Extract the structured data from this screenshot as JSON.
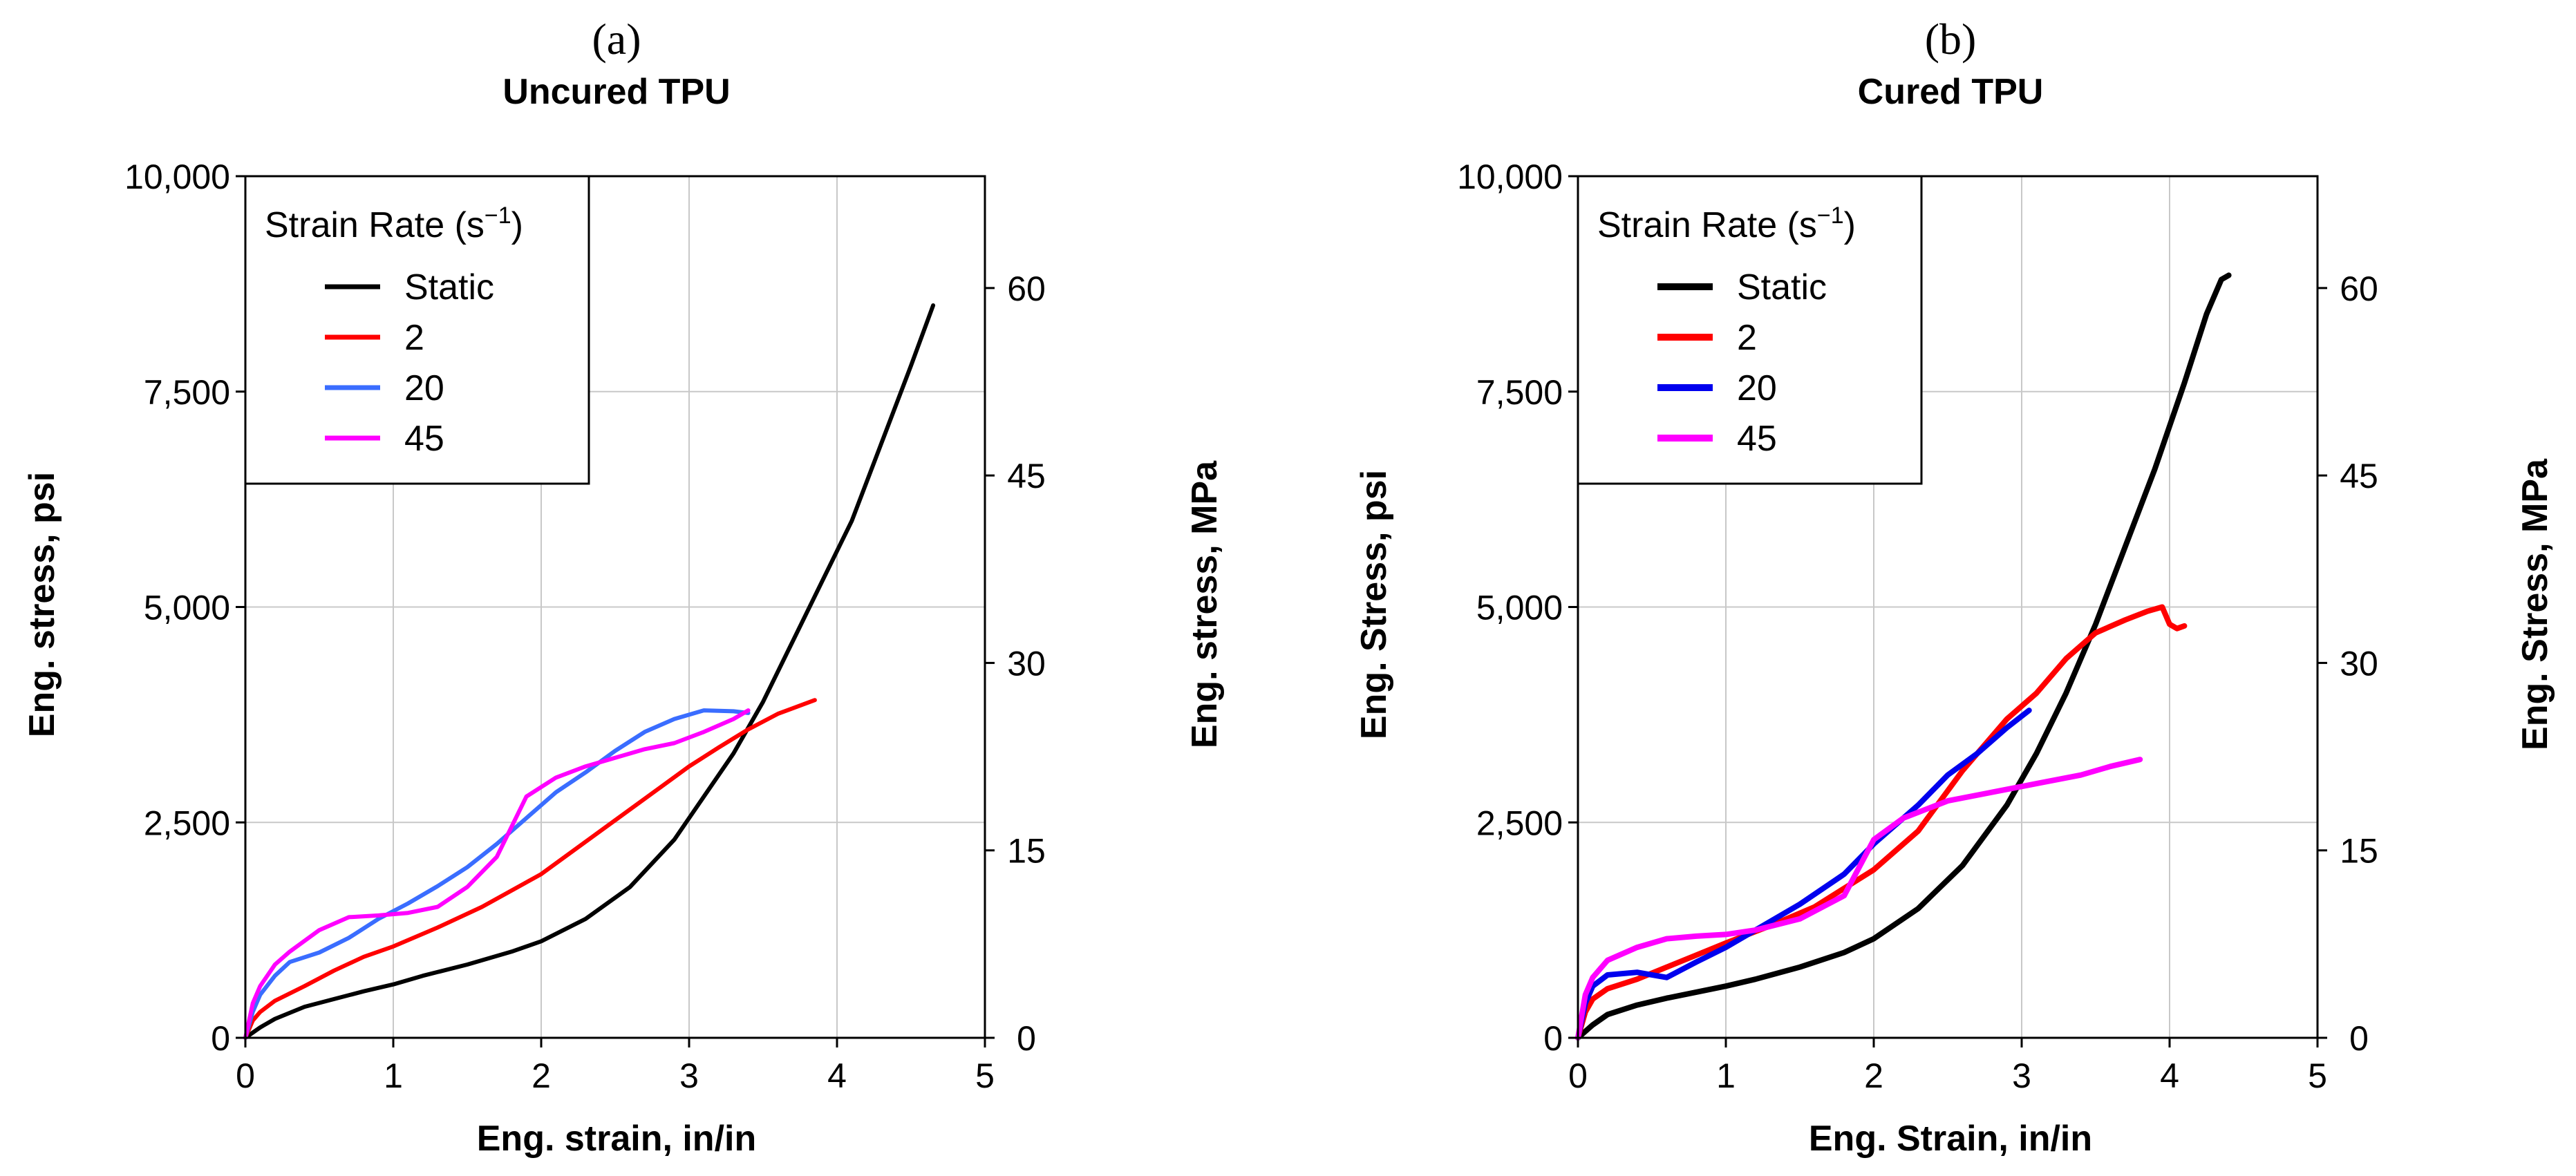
{
  "legend": {
    "title": "Strain Rate (s",
    "title_exp": "−1",
    "title_close": ")"
  },
  "colors": {
    "static": "#000000",
    "red": "#ff0000",
    "blue_a": "#3a6dff",
    "blue_b": "#0000ee",
    "magenta": "#ff00ff",
    "grid": "#c8c8c8"
  },
  "panels": [
    {
      "label": "(a)",
      "title": "Uncured TPU",
      "xlabel": "Eng. strain, in/in",
      "ylabel_left": "Eng. stress, psi",
      "ylabel_right": "Eng. stress, MPa"
    },
    {
      "label": "(b)",
      "title": "Cured TPU",
      "xlabel": "Eng. Strain, in/in",
      "ylabel_left": "Eng. Stress, psi",
      "ylabel_right": "Eng. Stress, MPa"
    }
  ],
  "chart_data": [
    {
      "type": "line",
      "title": "Uncured TPU",
      "xlabel": "Eng. strain, in/in",
      "ylabel": "Eng. stress, psi",
      "y2label": "Eng. stress, MPa",
      "xlim": [
        0,
        5
      ],
      "ylim": [
        0,
        10000
      ],
      "y2lim": [
        0,
        68.95
      ],
      "xticks": [
        0,
        1,
        2,
        3,
        4,
        5
      ],
      "xtick_labels": [
        "0",
        "1",
        "2",
        "3",
        "4",
        "5"
      ],
      "yticks": [
        0,
        2500,
        5000,
        7500,
        10000
      ],
      "ytick_labels": [
        "0",
        "2,500",
        "5,000",
        "7,500",
        "10,000"
      ],
      "y2ticks": [
        0,
        15,
        30,
        45,
        60
      ],
      "y2tick_labels": [
        "0",
        "15",
        "30",
        "45",
        "60"
      ],
      "grid": true,
      "legend_position": "top-left",
      "series": [
        {
          "name": "Static",
          "color": "#000000",
          "x": [
            0,
            0.1,
            0.2,
            0.4,
            0.6,
            0.8,
            1.0,
            1.2,
            1.5,
            1.8,
            2.0,
            2.3,
            2.6,
            2.9,
            3.1,
            3.3,
            3.5,
            3.7,
            3.9,
            4.1,
            4.3,
            4.5,
            4.65
          ],
          "y": [
            0,
            120,
            220,
            360,
            450,
            540,
            620,
            720,
            850,
            1000,
            1120,
            1380,
            1750,
            2300,
            2800,
            3300,
            3900,
            4600,
            5300,
            6000,
            6900,
            7800,
            8500
          ]
        },
        {
          "name": "2",
          "color": "#ff0000",
          "x": [
            0,
            0.05,
            0.1,
            0.2,
            0.4,
            0.6,
            0.8,
            1.0,
            1.3,
            1.6,
            2.0,
            2.4,
            2.8,
            3.0,
            3.2,
            3.4,
            3.6,
            3.85
          ],
          "y": [
            0,
            200,
            300,
            430,
            600,
            780,
            940,
            1060,
            1280,
            1520,
            1900,
            2400,
            2900,
            3150,
            3370,
            3580,
            3760,
            3920
          ]
        },
        {
          "name": "20",
          "color": "#3a6dff",
          "x": [
            0,
            0.05,
            0.1,
            0.2,
            0.3,
            0.5,
            0.7,
            0.9,
            1.1,
            1.3,
            1.5,
            1.7,
            1.9,
            2.1,
            2.3,
            2.5,
            2.7,
            2.9,
            3.1,
            3.3,
            3.4
          ],
          "y": [
            0,
            300,
            500,
            720,
            880,
            990,
            1160,
            1380,
            1560,
            1760,
            1980,
            2250,
            2550,
            2850,
            3080,
            3330,
            3550,
            3700,
            3800,
            3790,
            3770
          ]
        },
        {
          "name": "45",
          "color": "#ff00ff",
          "x": [
            0,
            0.05,
            0.1,
            0.2,
            0.3,
            0.5,
            0.7,
            0.9,
            1.1,
            1.3,
            1.5,
            1.7,
            1.9,
            2.1,
            2.3,
            2.5,
            2.7,
            2.9,
            3.1,
            3.3,
            3.4
          ],
          "y": [
            0,
            400,
            600,
            850,
            1000,
            1250,
            1400,
            1420,
            1450,
            1520,
            1750,
            2100,
            2800,
            3020,
            3150,
            3250,
            3350,
            3420,
            3550,
            3700,
            3800
          ]
        }
      ]
    },
    {
      "type": "line",
      "title": "Cured TPU",
      "xlabel": "Eng. Strain, in/in",
      "ylabel": "Eng. Stress, psi",
      "y2label": "Eng. Stress, MPa",
      "xlim": [
        0,
        5
      ],
      "ylim": [
        0,
        10000
      ],
      "y2lim": [
        0,
        68.95
      ],
      "xticks": [
        0,
        1,
        2,
        3,
        4,
        5
      ],
      "xtick_labels": [
        "0",
        "1",
        "2",
        "3",
        "4",
        "5"
      ],
      "yticks": [
        0,
        2500,
        5000,
        7500,
        10000
      ],
      "ytick_labels": [
        "0",
        "2,500",
        "5,000",
        "7,500",
        "10,000"
      ],
      "y2ticks": [
        0,
        15,
        30,
        45,
        60
      ],
      "y2tick_labels": [
        "0",
        "15",
        "30",
        "45",
        "60"
      ],
      "grid": true,
      "legend_position": "top-left",
      "series": [
        {
          "name": "Static",
          "color": "#000000",
          "x": [
            0,
            0.1,
            0.2,
            0.4,
            0.6,
            0.8,
            1.0,
            1.2,
            1.5,
            1.8,
            2.0,
            2.3,
            2.6,
            2.9,
            3.1,
            3.3,
            3.5,
            3.7,
            3.9,
            4.1,
            4.25,
            4.35,
            4.4
          ],
          "y": [
            0,
            150,
            270,
            380,
            460,
            530,
            600,
            680,
            820,
            990,
            1150,
            1500,
            2000,
            2700,
            3300,
            4000,
            4800,
            5700,
            6600,
            7600,
            8400,
            8800,
            8850
          ]
        },
        {
          "name": "2",
          "color": "#ff0000",
          "x": [
            0,
            0.05,
            0.1,
            0.2,
            0.4,
            0.6,
            0.8,
            1.0,
            1.3,
            1.6,
            2.0,
            2.3,
            2.6,
            2.9,
            3.1,
            3.3,
            3.5,
            3.7,
            3.85,
            3.95,
            4.0,
            4.05,
            4.1
          ],
          "y": [
            0,
            300,
            450,
            570,
            680,
            820,
            960,
            1100,
            1300,
            1520,
            1950,
            2400,
            3100,
            3700,
            4000,
            4400,
            4700,
            4850,
            4950,
            5000,
            4800,
            4750,
            4780
          ]
        },
        {
          "name": "20",
          "color": "#0000ee",
          "x": [
            0,
            0.05,
            0.1,
            0.2,
            0.4,
            0.6,
            0.8,
            1.0,
            1.2,
            1.5,
            1.8,
            2.0,
            2.3,
            2.5,
            2.7,
            2.9,
            3.05
          ],
          "y": [
            0,
            400,
            600,
            730,
            760,
            700,
            880,
            1050,
            1250,
            1550,
            1900,
            2250,
            2700,
            3050,
            3300,
            3600,
            3800
          ]
        },
        {
          "name": "45",
          "color": "#ff00ff",
          "x": [
            0,
            0.05,
            0.1,
            0.2,
            0.4,
            0.6,
            0.8,
            1.0,
            1.2,
            1.5,
            1.8,
            2.0,
            2.2,
            2.5,
            2.8,
            3.1,
            3.4,
            3.6,
            3.8
          ],
          "y": [
            0,
            500,
            700,
            900,
            1050,
            1150,
            1180,
            1200,
            1250,
            1380,
            1650,
            2300,
            2550,
            2750,
            2850,
            2950,
            3050,
            3150,
            3230
          ]
        }
      ]
    }
  ]
}
